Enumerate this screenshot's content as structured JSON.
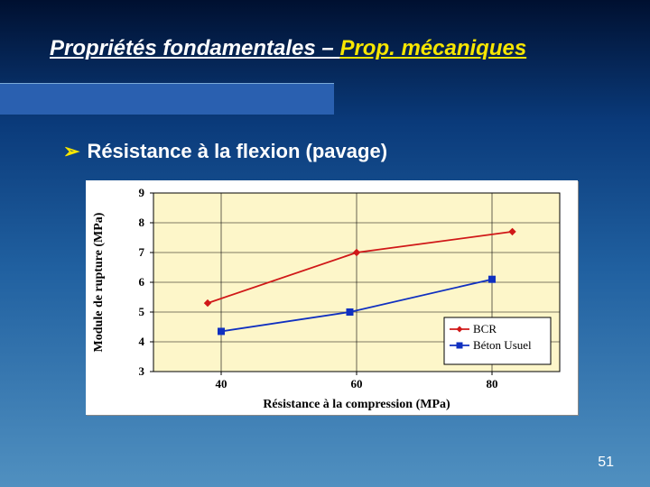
{
  "slide": {
    "title_part1": "Propriétés fondamentales – ",
    "title_part2": "Prop. mécaniques",
    "bullet_text": "Résistance à la flexion (pavage)",
    "page_number": "51"
  },
  "chart": {
    "type": "line",
    "background_color": "#ffffff",
    "plot_bg_color": "#fdf6c9",
    "grid_color": "#000000",
    "axis_font_family": "Times New Roman",
    "xlabel": "Résistance à la compression (MPa)",
    "ylabel": "Module de rupture (MPa)",
    "label_fontsize": 14,
    "tick_fontsize": 13,
    "x_ticks": [
      40,
      60,
      80
    ],
    "y_ticks": [
      3,
      4,
      5,
      6,
      7,
      8,
      9
    ],
    "xlim": [
      30,
      90
    ],
    "ylim": [
      3,
      9
    ],
    "series": [
      {
        "name": "BCR",
        "color": "#d01818",
        "marker": "diamond",
        "marker_size": 7,
        "line_width": 1.8,
        "points": [
          {
            "x": 38,
            "y": 5.3
          },
          {
            "x": 60,
            "y": 7.0
          },
          {
            "x": 83,
            "y": 7.7
          }
        ]
      },
      {
        "name": "Béton Usuel",
        "color": "#1030c0",
        "marker": "square",
        "marker_size": 7,
        "line_width": 1.8,
        "points": [
          {
            "x": 40,
            "y": 4.35
          },
          {
            "x": 59,
            "y": 5.0
          },
          {
            "x": 80,
            "y": 6.1
          }
        ]
      }
    ],
    "legend": {
      "position": "right-bottom",
      "border_color": "#000000",
      "bg_color": "#ffffff",
      "fontsize": 13
    }
  }
}
